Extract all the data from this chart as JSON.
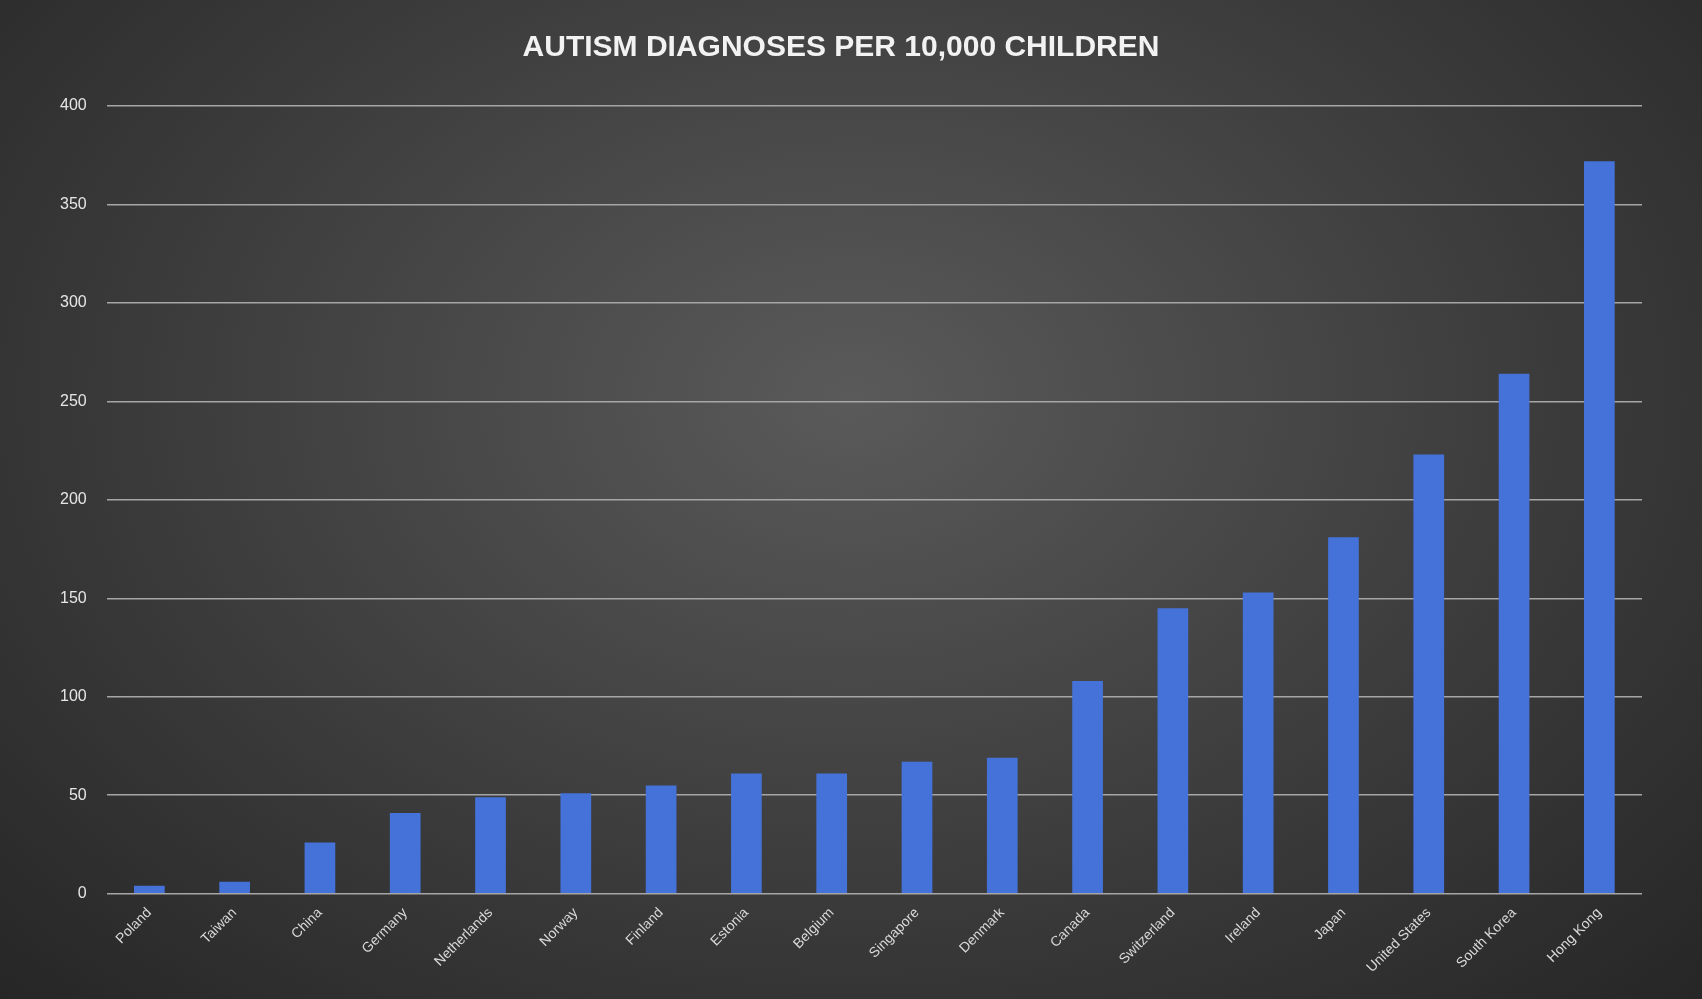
{
  "chart_data": {
    "type": "bar",
    "title": "AUTISM DIAGNOSES PER 10,000 CHILDREN",
    "categories": [
      "Poland",
      "Taiwan",
      "China",
      "Germany",
      "Netherlands",
      "Norway",
      "Finland",
      "Estonia",
      "Belgium",
      "Singapore",
      "Denmark",
      "Canada",
      "Switzerland",
      "Ireland",
      "Japan",
      "United States",
      "South Korea",
      "Hong Kong"
    ],
    "values": [
      4,
      6,
      26,
      41,
      49,
      51,
      55,
      61,
      61,
      67,
      69,
      108,
      145,
      153,
      181,
      223,
      264,
      372
    ],
    "color": "#4472d8",
    "ylim": [
      0,
      400
    ],
    "yticks": [
      0,
      50,
      100,
      150,
      200,
      250,
      300,
      350,
      400
    ],
    "grid": "y"
  }
}
